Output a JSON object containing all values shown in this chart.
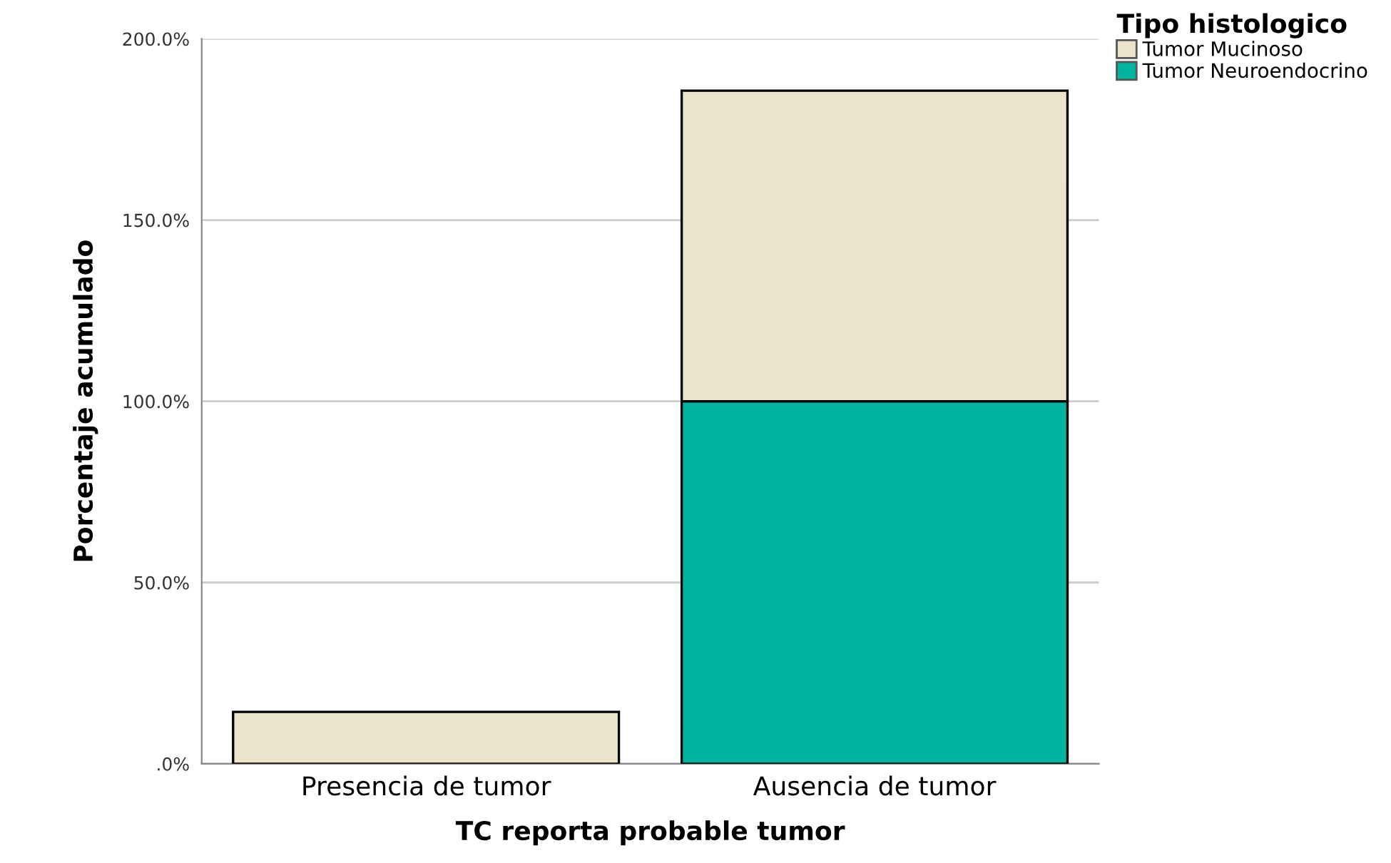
{
  "chart_data": {
    "type": "bar",
    "stacked": true,
    "categories": [
      "Presencia de tumor",
      "Ausencia de tumor"
    ],
    "series": [
      {
        "name": "Tumor Neuroendocrino",
        "color": "#00b5a0",
        "values": [
          0,
          100
        ]
      },
      {
        "name": "Tumor Mucinoso",
        "color": "#ebe4ca",
        "values": [
          14.3,
          85.7
        ]
      }
    ],
    "xlabel": "TC reporta probable tumor",
    "ylabel": "Porcentaje acumulado",
    "legend_title": "Tipo histologico",
    "ylim": [
      0,
      200
    ],
    "yticks": [
      {
        "value": 0,
        "label": ".0%"
      },
      {
        "value": 50,
        "label": "50.0%"
      },
      {
        "value": 100,
        "label": "100.0%"
      },
      {
        "value": 150,
        "label": "150.0%"
      },
      {
        "value": 200,
        "label": "200.0%"
      }
    ],
    "grid": "y",
    "legend": "top right"
  }
}
